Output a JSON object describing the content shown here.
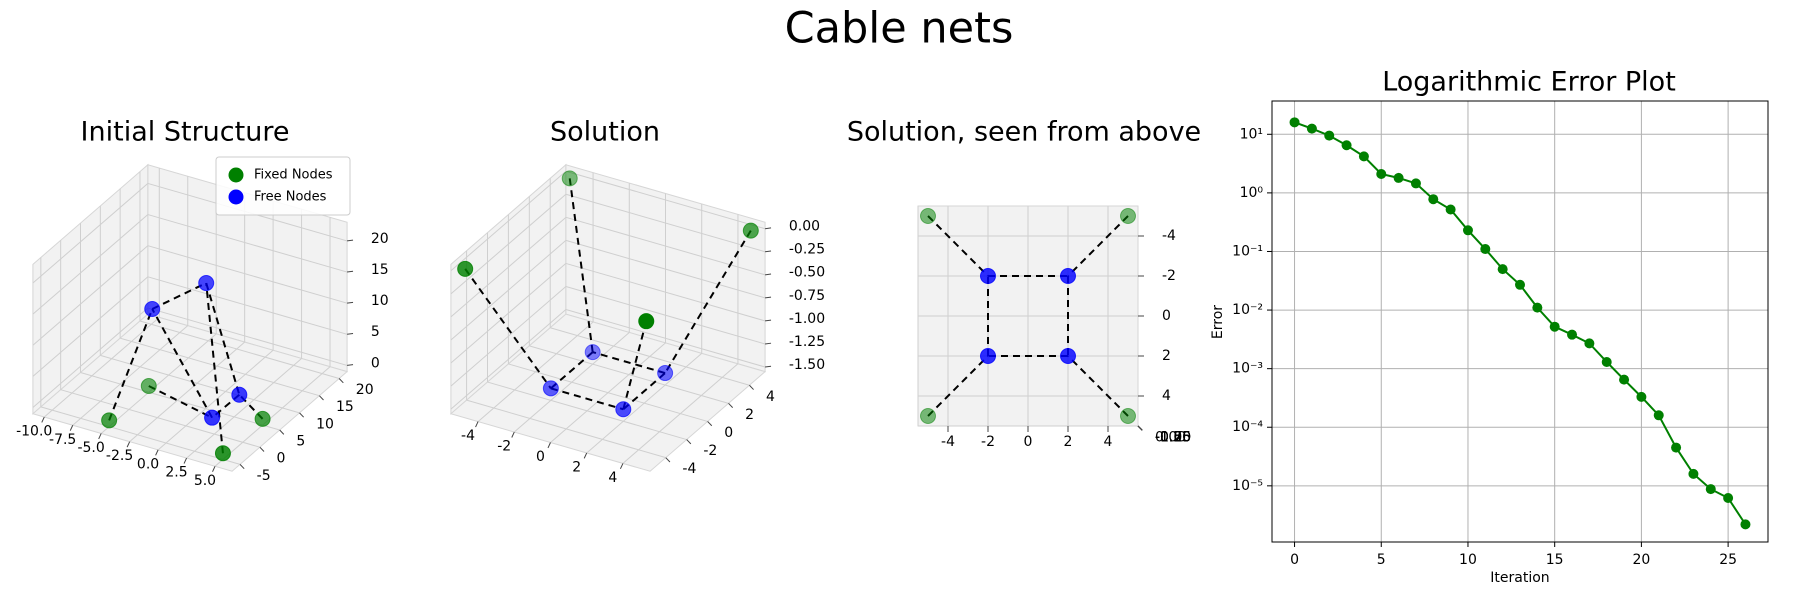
{
  "title": "Cable nets",
  "chart_data": [
    {
      "type": "scatter3d",
      "title": "Initial Structure",
      "elev": 30,
      "azim": -60,
      "xlim": [
        -11,
        6.5
      ],
      "ylim": [
        -7,
        22
      ],
      "zlim": [
        -1,
        23
      ],
      "xticks": [
        {
          "value": -10,
          "label": "-10.0"
        },
        {
          "value": -7.5,
          "label": "-7.5"
        },
        {
          "value": -5,
          "label": "-5.0"
        },
        {
          "value": -2.5,
          "label": "-2.5"
        },
        {
          "value": 0,
          "label": "0.0"
        },
        {
          "value": 2.5,
          "label": "2.5"
        },
        {
          "value": 5,
          "label": "5.0"
        }
      ],
      "yticks": [
        -5,
        0,
        5,
        10,
        15,
        20
      ],
      "zticks": [
        0,
        5,
        10,
        15,
        20
      ],
      "legend": "upper right",
      "series": [
        {
          "name": "Fixed Nodes",
          "color": "#008000",
          "x": [
            -5,
            5,
            -5,
            5
          ],
          "y": [
            -5,
            -5,
            5,
            5
          ],
          "z": [
            0,
            0,
            0,
            0
          ]
        },
        {
          "name": "Free Nodes",
          "color": "#0000ff",
          "x": [
            -4,
            -1,
            3,
            4
          ],
          "y": [
            3,
            8,
            -2,
            2
          ],
          "z": [
            14,
            17,
            3,
            5
          ]
        }
      ],
      "edges": [
        [
          [
            0,
            0
          ],
          [
            1,
            0
          ]
        ],
        [
          [
            0,
            1
          ],
          [
            1,
            1
          ]
        ],
        [
          [
            0,
            2
          ],
          [
            1,
            2
          ]
        ],
        [
          [
            0,
            3
          ],
          [
            1,
            3
          ]
        ],
        [
          [
            1,
            0
          ],
          [
            1,
            1
          ]
        ],
        [
          [
            1,
            1
          ],
          [
            1,
            3
          ]
        ],
        [
          [
            1,
            3
          ],
          [
            1,
            2
          ]
        ],
        [
          [
            1,
            2
          ],
          [
            1,
            0
          ]
        ]
      ]
    },
    {
      "type": "scatter3d",
      "title": "Solution",
      "elev": 30,
      "azim": -60,
      "xlim": [
        -5.5,
        5.5
      ],
      "ylim": [
        -5.5,
        5.5
      ],
      "zlim": [
        -1.55,
        0.07
      ],
      "xticks": [
        -4,
        -2,
        0,
        2,
        4
      ],
      "yticks": [
        -4,
        -2,
        0,
        2,
        4
      ],
      "zticks": [
        {
          "value": 0,
          "label": "0.00"
        },
        {
          "value": -0.25,
          "label": "-0.25"
        },
        {
          "value": -0.5,
          "label": "-0.50"
        },
        {
          "value": -0.75,
          "label": "-0.75"
        },
        {
          "value": -1,
          "label": "-1.00"
        },
        {
          "value": -1.25,
          "label": "-1.25"
        },
        {
          "value": -1.5,
          "label": "-1.50"
        }
      ],
      "series": [
        {
          "color": "#008000",
          "x": [
            -5,
            5,
            -5,
            5
          ],
          "y": [
            -5,
            -5,
            5,
            5
          ],
          "z": [
            0,
            0,
            0,
            0
          ]
        },
        {
          "color": "#0000ff",
          "x": [
            -2,
            2,
            -2,
            2
          ],
          "y": [
            -2,
            -2,
            2,
            2
          ],
          "z": [
            -1.42,
            -1.42,
            -1.42,
            -1.42
          ]
        }
      ],
      "edges": [
        [
          [
            0,
            0
          ],
          [
            1,
            0
          ]
        ],
        [
          [
            0,
            1
          ],
          [
            1,
            1
          ]
        ],
        [
          [
            0,
            2
          ],
          [
            1,
            2
          ]
        ],
        [
          [
            0,
            3
          ],
          [
            1,
            3
          ]
        ],
        [
          [
            1,
            0
          ],
          [
            1,
            1
          ]
        ],
        [
          [
            1,
            1
          ],
          [
            1,
            3
          ]
        ],
        [
          [
            1,
            3
          ],
          [
            1,
            2
          ]
        ],
        [
          [
            1,
            2
          ],
          [
            1,
            0
          ]
        ]
      ]
    },
    {
      "type": "scatter3d",
      "title": "Solution, seen from above",
      "elev": -90,
      "azim": -90,
      "xlim": [
        -5.5,
        5.5
      ],
      "ylim": [
        -5.5,
        5.5
      ],
      "zlim": [
        -1.55,
        0.07
      ],
      "xticks": [
        -4,
        -2,
        0,
        2,
        4
      ],
      "yticks": [
        -4,
        -2,
        0,
        2,
        4
      ],
      "zticks": [
        {
          "value": 0,
          "label": "0.00"
        },
        {
          "value": -0.25,
          "label": "-0.25"
        },
        {
          "value": -0.5,
          "label": "-0.50"
        },
        {
          "value": -0.75,
          "label": "-0.75"
        },
        {
          "value": -1,
          "label": "-1.00"
        },
        {
          "value": -1.25,
          "label": "-1.25"
        },
        {
          "value": -1.5,
          "label": "-1.50"
        }
      ],
      "series": [
        {
          "color": "#008000",
          "x": [
            -5,
            5,
            -5,
            5
          ],
          "y": [
            -5,
            -5,
            5,
            5
          ],
          "z": [
            0,
            0,
            0,
            0
          ]
        },
        {
          "color": "#0000ff",
          "x": [
            -2,
            2,
            -2,
            2
          ],
          "y": [
            -2,
            -2,
            2,
            2
          ],
          "z": [
            -1.42,
            -1.42,
            -1.42,
            -1.42
          ]
        }
      ],
      "edges": [
        [
          [
            0,
            0
          ],
          [
            1,
            0
          ]
        ],
        [
          [
            0,
            1
          ],
          [
            1,
            1
          ]
        ],
        [
          [
            0,
            2
          ],
          [
            1,
            2
          ]
        ],
        [
          [
            0,
            3
          ],
          [
            1,
            3
          ]
        ],
        [
          [
            1,
            0
          ],
          [
            1,
            1
          ]
        ],
        [
          [
            1,
            1
          ],
          [
            1,
            3
          ]
        ],
        [
          [
            1,
            3
          ],
          [
            1,
            2
          ]
        ],
        [
          [
            1,
            2
          ],
          [
            1,
            0
          ]
        ]
      ]
    },
    {
      "type": "line",
      "title": "Logarithmic Error Plot",
      "x_label": "Iteration",
      "y_label": "Error",
      "log_y": true,
      "grid": true,
      "x": [
        0,
        1,
        2,
        3,
        4,
        5,
        6,
        7,
        8,
        9,
        10,
        11,
        12,
        13,
        14,
        15,
        16,
        17,
        18,
        19,
        20,
        21,
        22,
        23,
        24,
        25,
        26
      ],
      "series": [
        {
          "color": "#008000",
          "values": [
            16,
            12.5,
            9.5,
            6.5,
            4.2,
            2.1,
            1.8,
            1.45,
            0.78,
            0.52,
            0.23,
            0.11,
            0.05,
            0.027,
            0.011,
            0.0052,
            0.0038,
            0.0027,
            0.0013,
            0.00065,
            0.00033,
            0.00016,
            4.5e-05,
            1.6e-05,
            8.8e-06,
            6.2e-06,
            2.2e-06
          ]
        }
      ],
      "xlim": [
        -1.3,
        27.3
      ],
      "xticks": [
        0,
        5,
        10,
        15,
        20,
        25
      ],
      "ylim": [
        1.1e-06,
        37
      ],
      "yticks": [
        {
          "value": 10,
          "label": "10¹"
        },
        {
          "value": 1,
          "label": "10⁰"
        },
        {
          "value": 0.1,
          "label": "10⁻¹"
        },
        {
          "value": 0.01,
          "label": "10⁻²"
        },
        {
          "value": 0.001,
          "label": "10⁻³"
        },
        {
          "value": 0.0001,
          "label": "10⁻⁴"
        },
        {
          "value": 1e-05,
          "label": "10⁻⁵"
        }
      ]
    }
  ]
}
